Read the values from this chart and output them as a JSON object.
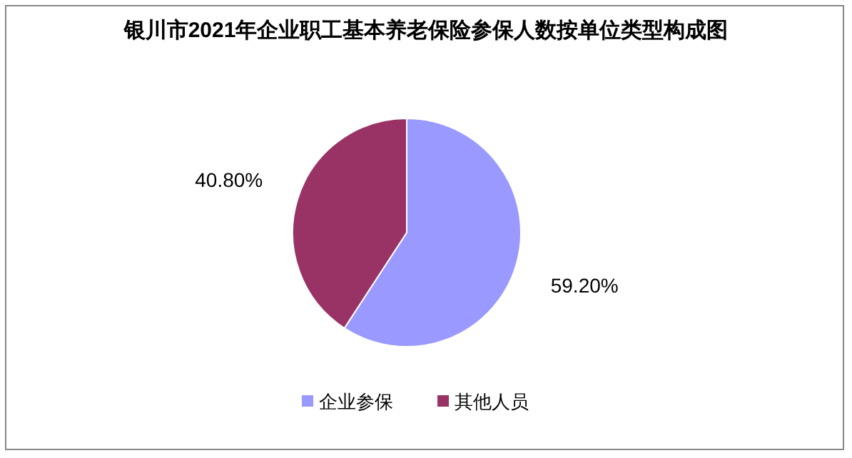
{
  "chart_data": {
    "type": "pie",
    "title": "银川市2021年企业职工基本养老保险参保人数按单位类型构成图",
    "categories": [
      "企业参保",
      "其他人员"
    ],
    "values": [
      59.2,
      40.8
    ],
    "colors": [
      "#9999ff",
      "#993366"
    ],
    "value_labels": [
      "59.20%",
      "40.80%"
    ],
    "legend": "bottom"
  }
}
